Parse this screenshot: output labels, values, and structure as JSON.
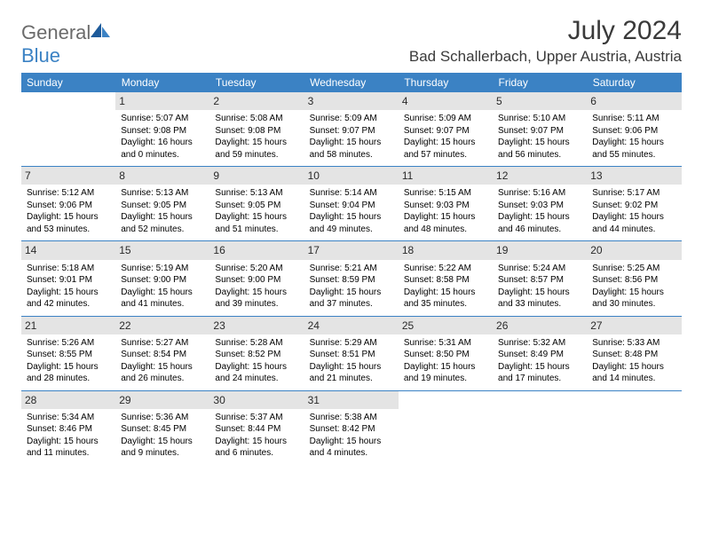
{
  "brand": {
    "name1": "General",
    "name2": "Blue"
  },
  "title": "July 2024",
  "location": "Bad Schallerbach, Upper Austria, Austria",
  "colors": {
    "header_bg": "#3b82c4",
    "header_fg": "#ffffff",
    "daynum_bg": "#e4e4e4",
    "border": "#3b82c4",
    "logo_gray": "#6b6b6b",
    "logo_blue": "#3b82c4"
  },
  "dayNames": [
    "Sunday",
    "Monday",
    "Tuesday",
    "Wednesday",
    "Thursday",
    "Friday",
    "Saturday"
  ],
  "weeks": [
    [
      null,
      {
        "n": "1",
        "sr": "5:07 AM",
        "ss": "9:08 PM",
        "dl": "16 hours and 0 minutes."
      },
      {
        "n": "2",
        "sr": "5:08 AM",
        "ss": "9:08 PM",
        "dl": "15 hours and 59 minutes."
      },
      {
        "n": "3",
        "sr": "5:09 AM",
        "ss": "9:07 PM",
        "dl": "15 hours and 58 minutes."
      },
      {
        "n": "4",
        "sr": "5:09 AM",
        "ss": "9:07 PM",
        "dl": "15 hours and 57 minutes."
      },
      {
        "n": "5",
        "sr": "5:10 AM",
        "ss": "9:07 PM",
        "dl": "15 hours and 56 minutes."
      },
      {
        "n": "6",
        "sr": "5:11 AM",
        "ss": "9:06 PM",
        "dl": "15 hours and 55 minutes."
      }
    ],
    [
      {
        "n": "7",
        "sr": "5:12 AM",
        "ss": "9:06 PM",
        "dl": "15 hours and 53 minutes."
      },
      {
        "n": "8",
        "sr": "5:13 AM",
        "ss": "9:05 PM",
        "dl": "15 hours and 52 minutes."
      },
      {
        "n": "9",
        "sr": "5:13 AM",
        "ss": "9:05 PM",
        "dl": "15 hours and 51 minutes."
      },
      {
        "n": "10",
        "sr": "5:14 AM",
        "ss": "9:04 PM",
        "dl": "15 hours and 49 minutes."
      },
      {
        "n": "11",
        "sr": "5:15 AM",
        "ss": "9:03 PM",
        "dl": "15 hours and 48 minutes."
      },
      {
        "n": "12",
        "sr": "5:16 AM",
        "ss": "9:03 PM",
        "dl": "15 hours and 46 minutes."
      },
      {
        "n": "13",
        "sr": "5:17 AM",
        "ss": "9:02 PM",
        "dl": "15 hours and 44 minutes."
      }
    ],
    [
      {
        "n": "14",
        "sr": "5:18 AM",
        "ss": "9:01 PM",
        "dl": "15 hours and 42 minutes."
      },
      {
        "n": "15",
        "sr": "5:19 AM",
        "ss": "9:00 PM",
        "dl": "15 hours and 41 minutes."
      },
      {
        "n": "16",
        "sr": "5:20 AM",
        "ss": "9:00 PM",
        "dl": "15 hours and 39 minutes."
      },
      {
        "n": "17",
        "sr": "5:21 AM",
        "ss": "8:59 PM",
        "dl": "15 hours and 37 minutes."
      },
      {
        "n": "18",
        "sr": "5:22 AM",
        "ss": "8:58 PM",
        "dl": "15 hours and 35 minutes."
      },
      {
        "n": "19",
        "sr": "5:24 AM",
        "ss": "8:57 PM",
        "dl": "15 hours and 33 minutes."
      },
      {
        "n": "20",
        "sr": "5:25 AM",
        "ss": "8:56 PM",
        "dl": "15 hours and 30 minutes."
      }
    ],
    [
      {
        "n": "21",
        "sr": "5:26 AM",
        "ss": "8:55 PM",
        "dl": "15 hours and 28 minutes."
      },
      {
        "n": "22",
        "sr": "5:27 AM",
        "ss": "8:54 PM",
        "dl": "15 hours and 26 minutes."
      },
      {
        "n": "23",
        "sr": "5:28 AM",
        "ss": "8:52 PM",
        "dl": "15 hours and 24 minutes."
      },
      {
        "n": "24",
        "sr": "5:29 AM",
        "ss": "8:51 PM",
        "dl": "15 hours and 21 minutes."
      },
      {
        "n": "25",
        "sr": "5:31 AM",
        "ss": "8:50 PM",
        "dl": "15 hours and 19 minutes."
      },
      {
        "n": "26",
        "sr": "5:32 AM",
        "ss": "8:49 PM",
        "dl": "15 hours and 17 minutes."
      },
      {
        "n": "27",
        "sr": "5:33 AM",
        "ss": "8:48 PM",
        "dl": "15 hours and 14 minutes."
      }
    ],
    [
      {
        "n": "28",
        "sr": "5:34 AM",
        "ss": "8:46 PM",
        "dl": "15 hours and 11 minutes."
      },
      {
        "n": "29",
        "sr": "5:36 AM",
        "ss": "8:45 PM",
        "dl": "15 hours and 9 minutes."
      },
      {
        "n": "30",
        "sr": "5:37 AM",
        "ss": "8:44 PM",
        "dl": "15 hours and 6 minutes."
      },
      {
        "n": "31",
        "sr": "5:38 AM",
        "ss": "8:42 PM",
        "dl": "15 hours and 4 minutes."
      },
      null,
      null,
      null
    ]
  ],
  "labels": {
    "sunrise": "Sunrise:",
    "sunset": "Sunset:",
    "daylight": "Daylight:"
  }
}
